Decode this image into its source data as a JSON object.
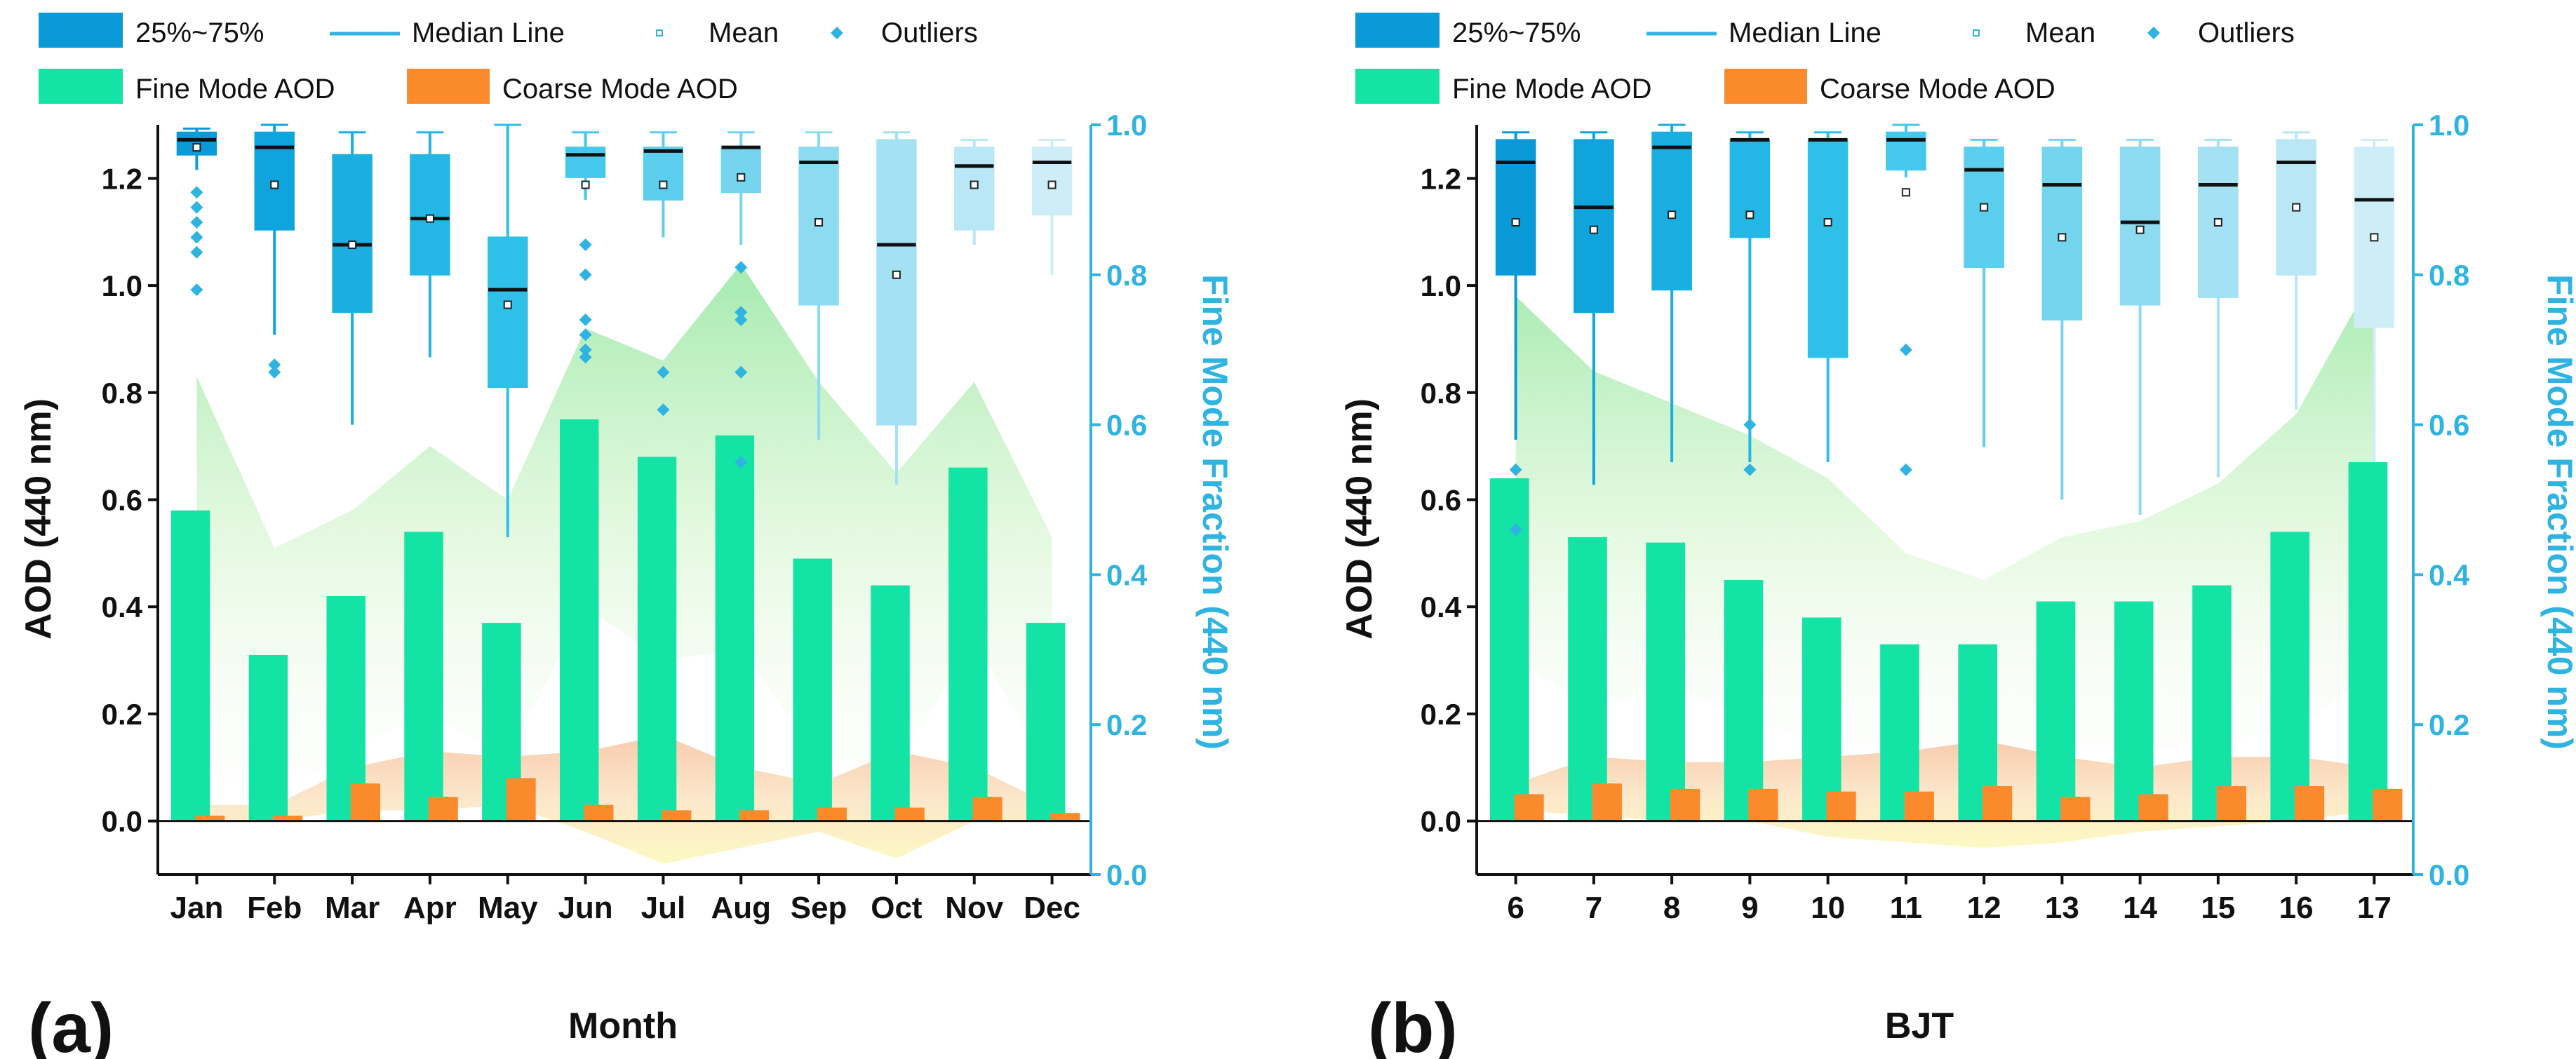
{
  "chart_data": [
    {
      "panel_label": "(a)",
      "type": "box+bar+area",
      "xlabel": "Month",
      "ylabel": "AOD (440 nm)",
      "ylabel_right": "Fine Mode Fraction (440 nm)",
      "ylim": [
        -0.1,
        1.3
      ],
      "ylim_right": [
        0.0,
        1.0
      ],
      "yticks": [
        0.0,
        0.2,
        0.4,
        0.6,
        0.8,
        1.0,
        1.2
      ],
      "yticks_right": [
        0.0,
        0.2,
        0.4,
        0.6,
        0.8,
        1.0
      ],
      "categories": [
        "Jan",
        "Feb",
        "Mar",
        "Apr",
        "May",
        "Jun",
        "Jul",
        "Aug",
        "Sep",
        "Oct",
        "Nov",
        "Dec"
      ],
      "legend": {
        "box": "25%~75%",
        "median": "Median Line",
        "mean": "Mean",
        "outliers": "Outliers",
        "fine": "Fine Mode AOD",
        "coarse": "Coarse Mode AOD"
      },
      "fine_mode_aod": [
        0.58,
        0.31,
        0.42,
        0.54,
        0.37,
        0.75,
        0.68,
        0.72,
        0.49,
        0.44,
        0.66,
        0.37
      ],
      "coarse_mode_aod": [
        0.01,
        0.01,
        0.07,
        0.045,
        0.08,
        0.03,
        0.02,
        0.02,
        0.025,
        0.025,
        0.045,
        0.015
      ],
      "fine_band": {
        "upper": [
          0.83,
          0.51,
          0.58,
          0.7,
          0.6,
          0.92,
          0.86,
          1.04,
          0.82,
          0.65,
          0.82,
          0.53
        ],
        "lower": [
          0.1,
          0.04,
          0.14,
          0.2,
          0.12,
          0.4,
          0.3,
          0.32,
          0.12,
          0.1,
          0.34,
          0.08
        ]
      },
      "coarse_band": {
        "upper": [
          0.03,
          0.03,
          0.1,
          0.13,
          0.12,
          0.13,
          0.16,
          0.1,
          0.07,
          0.13,
          0.1,
          0.03
        ],
        "lower": [
          0.0,
          0.0,
          0.02,
          0.02,
          0.03,
          -0.02,
          -0.08,
          -0.05,
          -0.02,
          -0.07,
          0.0,
          0.0
        ]
      },
      "fmf_box": [
        {
          "q1": 0.96,
          "q3": 0.99,
          "median": 0.98,
          "mean": 0.97,
          "wlo": 0.94,
          "whi": 0.995,
          "out": [
            0.91,
            0.89,
            0.87,
            0.85,
            0.83,
            0.78
          ]
        },
        {
          "q1": 0.86,
          "q3": 0.99,
          "median": 0.97,
          "mean": 0.92,
          "wlo": 0.72,
          "whi": 1.0,
          "out": [
            0.68,
            0.67
          ]
        },
        {
          "q1": 0.75,
          "q3": 0.96,
          "median": 0.84,
          "mean": 0.84,
          "wlo": 0.6,
          "whi": 0.99,
          "out": []
        },
        {
          "q1": 0.8,
          "q3": 0.96,
          "median": 0.875,
          "mean": 0.875,
          "wlo": 0.69,
          "whi": 0.99,
          "out": []
        },
        {
          "q1": 0.65,
          "q3": 0.85,
          "median": 0.78,
          "mean": 0.76,
          "wlo": 0.45,
          "whi": 1.0,
          "out": []
        },
        {
          "q1": 0.93,
          "q3": 0.97,
          "median": 0.96,
          "mean": 0.92,
          "wlo": 0.9,
          "whi": 0.99,
          "out": [
            0.84,
            0.8,
            0.74,
            0.72,
            0.7,
            0.69
          ]
        },
        {
          "q1": 0.9,
          "q3": 0.97,
          "median": 0.965,
          "mean": 0.92,
          "wlo": 0.85,
          "whi": 0.99,
          "out": [
            0.67,
            0.62
          ]
        },
        {
          "q1": 0.91,
          "q3": 0.97,
          "median": 0.97,
          "mean": 0.93,
          "wlo": 0.84,
          "whi": 0.99,
          "out": [
            0.81,
            0.75,
            0.74,
            0.67,
            0.55
          ]
        },
        {
          "q1": 0.76,
          "q3": 0.97,
          "median": 0.95,
          "mean": 0.87,
          "wlo": 0.58,
          "whi": 0.99,
          "out": []
        },
        {
          "q1": 0.6,
          "q3": 0.98,
          "median": 0.84,
          "mean": 0.8,
          "wlo": 0.52,
          "whi": 0.99,
          "out": []
        },
        {
          "q1": 0.86,
          "q3": 0.97,
          "median": 0.945,
          "mean": 0.92,
          "wlo": 0.84,
          "whi": 0.98,
          "out": []
        },
        {
          "q1": 0.88,
          "q3": 0.97,
          "median": 0.95,
          "mean": 0.92,
          "wlo": 0.8,
          "whi": 0.98,
          "out": []
        }
      ]
    },
    {
      "panel_label": "(b)",
      "type": "box+bar+area",
      "xlabel": "BJT",
      "ylabel": "AOD (440 nm)",
      "ylabel_right": "Fine Mode Fraction (440 nm)",
      "ylim": [
        -0.1,
        1.3
      ],
      "ylim_right": [
        0.0,
        1.0
      ],
      "yticks": [
        0.0,
        0.2,
        0.4,
        0.6,
        0.8,
        1.0,
        1.2
      ],
      "yticks_right": [
        0.0,
        0.2,
        0.4,
        0.6,
        0.8,
        1.0
      ],
      "categories": [
        "6",
        "7",
        "8",
        "9",
        "10",
        "11",
        "12",
        "13",
        "14",
        "15",
        "16",
        "17"
      ],
      "legend": {
        "box": "25%~75%",
        "median": "Median Line",
        "mean": "Mean",
        "outliers": "Outliers",
        "fine": "Fine Mode AOD",
        "coarse": "Coarse Mode AOD"
      },
      "fine_mode_aod": [
        0.64,
        0.53,
        0.52,
        0.45,
        0.38,
        0.33,
        0.33,
        0.41,
        0.41,
        0.44,
        0.54,
        0.67
      ],
      "coarse_mode_aod": [
        0.05,
        0.07,
        0.06,
        0.06,
        0.055,
        0.055,
        0.065,
        0.045,
        0.05,
        0.065,
        0.065,
        0.06
      ],
      "fine_band": {
        "upper": [
          0.98,
          0.84,
          0.78,
          0.72,
          0.64,
          0.5,
          0.45,
          0.53,
          0.56,
          0.63,
          0.76,
          1.02
        ],
        "lower": [
          0.3,
          0.21,
          0.25,
          0.19,
          0.14,
          0.09,
          0.09,
          0.13,
          0.13,
          0.15,
          0.17,
          0.28
        ]
      },
      "coarse_band": {
        "upper": [
          0.07,
          0.12,
          0.11,
          0.11,
          0.12,
          0.13,
          0.15,
          0.12,
          0.1,
          0.12,
          0.12,
          0.1
        ],
        "lower": [
          0.02,
          0.01,
          0.0,
          0.0,
          -0.03,
          -0.04,
          -0.05,
          -0.04,
          -0.02,
          -0.01,
          0.0,
          0.02
        ]
      },
      "fmf_box": [
        {
          "q1": 0.8,
          "q3": 0.98,
          "median": 0.95,
          "mean": 0.87,
          "wlo": 0.58,
          "whi": 0.99,
          "out": [
            0.54,
            0.46
          ]
        },
        {
          "q1": 0.75,
          "q3": 0.98,
          "median": 0.89,
          "mean": 0.86,
          "wlo": 0.52,
          "whi": 0.99,
          "out": []
        },
        {
          "q1": 0.78,
          "q3": 0.99,
          "median": 0.97,
          "mean": 0.88,
          "wlo": 0.55,
          "whi": 1.0,
          "out": []
        },
        {
          "q1": 0.85,
          "q3": 0.98,
          "median": 0.98,
          "mean": 0.88,
          "wlo": 0.55,
          "whi": 0.99,
          "out": [
            0.6,
            0.54
          ]
        },
        {
          "q1": 0.69,
          "q3": 0.98,
          "median": 0.98,
          "mean": 0.87,
          "wlo": 0.55,
          "whi": 0.99,
          "out": []
        },
        {
          "q1": 0.94,
          "q3": 0.99,
          "median": 0.98,
          "mean": 0.91,
          "wlo": 0.93,
          "whi": 1.0,
          "out": [
            0.7,
            0.54
          ]
        },
        {
          "q1": 0.81,
          "q3": 0.97,
          "median": 0.94,
          "mean": 0.89,
          "wlo": 0.57,
          "whi": 0.98,
          "out": []
        },
        {
          "q1": 0.74,
          "q3": 0.97,
          "median": 0.92,
          "mean": 0.85,
          "wlo": 0.5,
          "whi": 0.98,
          "out": []
        },
        {
          "q1": 0.76,
          "q3": 0.97,
          "median": 0.87,
          "mean": 0.86,
          "wlo": 0.48,
          "whi": 0.98,
          "out": []
        },
        {
          "q1": 0.77,
          "q3": 0.97,
          "median": 0.92,
          "mean": 0.87,
          "wlo": 0.53,
          "whi": 0.98,
          "out": []
        },
        {
          "q1": 0.8,
          "q3": 0.98,
          "median": 0.95,
          "mean": 0.89,
          "wlo": 0.62,
          "whi": 0.99,
          "out": []
        },
        {
          "q1": 0.73,
          "q3": 0.97,
          "median": 0.9,
          "mean": 0.85,
          "wlo": 0.55,
          "whi": 0.98,
          "out": []
        }
      ]
    }
  ],
  "colors": {
    "fine_bar": "#14e3a6",
    "coarse_bar": "#fb8a2c",
    "fine_band_top": "#6fe089",
    "coarse_band": "#f7bb8e",
    "coarse_band_low": "#fbf39c",
    "right_axis": "#2fb3e0",
    "median": "#111111",
    "box_shades": [
      "#0a9ad8",
      "#10a4dd",
      "#1aaee1",
      "#24b7e5",
      "#2ec0e8",
      "#45c8eb",
      "#5dcfee",
      "#75d5ef",
      "#8ddbf1",
      "#a3e1f3",
      "#b9e7f5",
      "#cdeef7"
    ]
  }
}
